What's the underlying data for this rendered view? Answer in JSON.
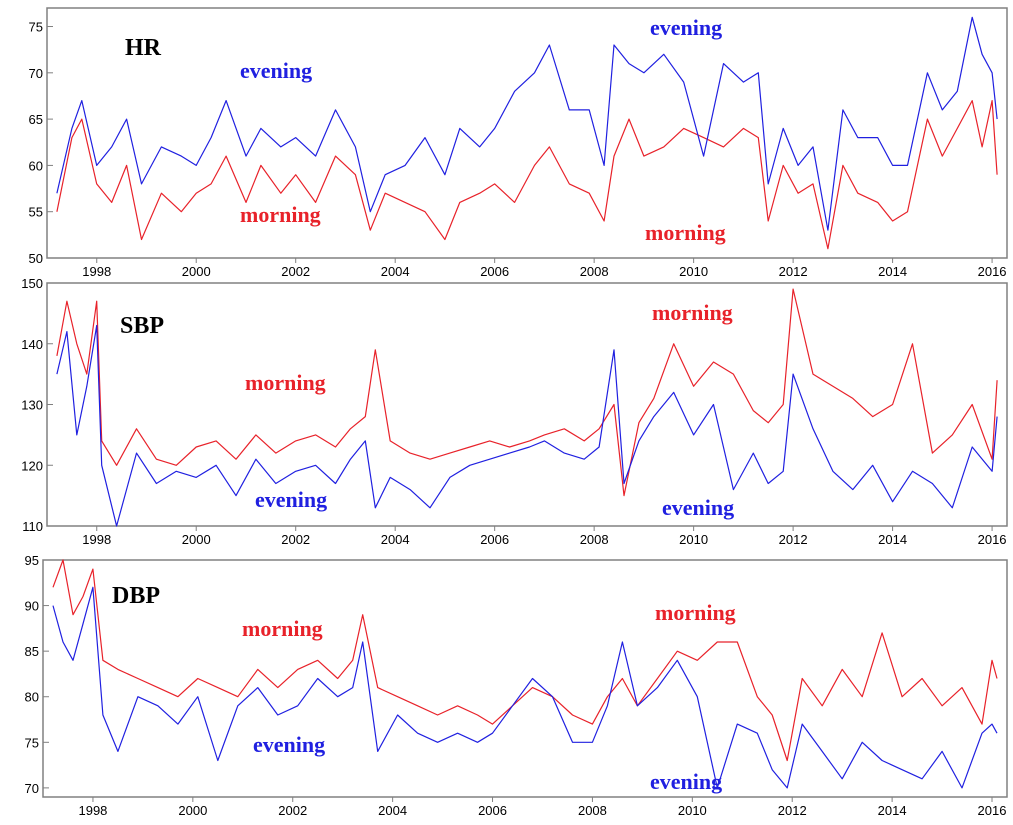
{
  "chart_data": [
    {
      "type": "line",
      "title": "HR",
      "xlabel": "",
      "ylabel": "",
      "xlim": [
        1997.0,
        2016.3
      ],
      "ylim": [
        50,
        77
      ],
      "yticks": [
        50,
        55,
        60,
        65,
        70,
        75
      ],
      "xticks": [
        "1998",
        "2000",
        "2002",
        "2004",
        "2006",
        "2008",
        "2010",
        "2012",
        "2014",
        "2016"
      ],
      "grid": false,
      "colors": {
        "morning": "#e8222a",
        "evening": "#2020e0"
      },
      "series": [
        {
          "name": "morning",
          "x": [
            1997.2,
            1997.5,
            1997.7,
            1998.0,
            1998.3,
            1998.6,
            1998.9,
            1999.3,
            1999.7,
            2000.0,
            2000.3,
            2000.6,
            2001.0,
            2001.3,
            2001.7,
            2002.0,
            2002.4,
            2002.8,
            2003.2,
            2003.5,
            2003.8,
            2004.2,
            2004.6,
            2005.0,
            2005.3,
            2005.7,
            2006.0,
            2006.4,
            2006.8,
            2007.1,
            2007.5,
            2007.9,
            2008.2,
            2008.4,
            2008.7,
            2009.0,
            2009.4,
            2009.8,
            2010.2,
            2010.6,
            2011.0,
            2011.3,
            2011.5,
            2011.8,
            2012.1,
            2012.4,
            2012.7,
            2013.0,
            2013.3,
            2013.7,
            2014.0,
            2014.3,
            2014.7,
            2015.0,
            2015.3,
            2015.6,
            2015.8,
            2016.0,
            2016.1
          ],
          "y": [
            55,
            63,
            65,
            58,
            56,
            60,
            52,
            57,
            55,
            57,
            58,
            61,
            56,
            60,
            57,
            59,
            56,
            61,
            59,
            53,
            57,
            56,
            55,
            52,
            56,
            57,
            58,
            56,
            60,
            62,
            58,
            57,
            54,
            61,
            65,
            61,
            62,
            64,
            63,
            62,
            64,
            63,
            54,
            60,
            57,
            58,
            51,
            60,
            57,
            56,
            54,
            55,
            65,
            61,
            64,
            67,
            62,
            67,
            59
          ]
        },
        {
          "name": "evening",
          "x": [
            1997.2,
            1997.5,
            1997.7,
            1998.0,
            1998.3,
            1998.6,
            1998.9,
            1999.3,
            1999.7,
            2000.0,
            2000.3,
            2000.6,
            2001.0,
            2001.3,
            2001.7,
            2002.0,
            2002.4,
            2002.8,
            2003.2,
            2003.5,
            2003.8,
            2004.2,
            2004.6,
            2005.0,
            2005.3,
            2005.7,
            2006.0,
            2006.4,
            2006.8,
            2007.1,
            2007.5,
            2007.9,
            2008.2,
            2008.4,
            2008.7,
            2009.0,
            2009.4,
            2009.8,
            2010.2,
            2010.6,
            2011.0,
            2011.3,
            2011.5,
            2011.8,
            2012.1,
            2012.4,
            2012.7,
            2013.0,
            2013.3,
            2013.7,
            2014.0,
            2014.3,
            2014.7,
            2015.0,
            2015.3,
            2015.6,
            2015.8,
            2016.0,
            2016.1
          ],
          "y": [
            57,
            64,
            67,
            60,
            62,
            65,
            58,
            62,
            61,
            60,
            63,
            67,
            61,
            64,
            62,
            63,
            61,
            66,
            62,
            55,
            59,
            60,
            63,
            59,
            64,
            62,
            64,
            68,
            70,
            73,
            66,
            66,
            60,
            73,
            71,
            70,
            72,
            69,
            61,
            71,
            69,
            70,
            58,
            64,
            60,
            62,
            53,
            66,
            63,
            63,
            60,
            60,
            70,
            66,
            68,
            76,
            72,
            70,
            65
          ]
        }
      ],
      "annotations": [
        "evening",
        "morning",
        "evening",
        "morning"
      ]
    },
    {
      "type": "line",
      "title": "SBP",
      "xlabel": "",
      "ylabel": "",
      "xlim": [
        1997.0,
        2016.3
      ],
      "ylim": [
        110,
        150
      ],
      "yticks": [
        110,
        120,
        130,
        140,
        150
      ],
      "xticks": [
        "1998",
        "2000",
        "2002",
        "2004",
        "2006",
        "2008",
        "2010",
        "2012",
        "2014",
        "2016"
      ],
      "grid": false,
      "colors": {
        "morning": "#e8222a",
        "evening": "#2020e0"
      },
      "series": [
        {
          "name": "morning",
          "x": [
            1997.2,
            1997.4,
            1997.6,
            1997.8,
            1998.0,
            1998.1,
            1998.4,
            1998.8,
            1999.2,
            1999.6,
            2000.0,
            2000.4,
            2000.8,
            2001.2,
            2001.6,
            2002.0,
            2002.4,
            2002.8,
            2003.1,
            2003.4,
            2003.6,
            2003.9,
            2004.3,
            2004.7,
            2005.1,
            2005.5,
            2005.9,
            2006.3,
            2006.7,
            2007.0,
            2007.4,
            2007.8,
            2008.1,
            2008.4,
            2008.6,
            2008.9,
            2009.2,
            2009.6,
            2010.0,
            2010.4,
            2010.8,
            2011.2,
            2011.5,
            2011.8,
            2012.0,
            2012.4,
            2012.8,
            2013.2,
            2013.6,
            2014.0,
            2014.4,
            2014.8,
            2015.2,
            2015.6,
            2016.0,
            2016.1
          ],
          "y": [
            138,
            147,
            140,
            135,
            147,
            124,
            120,
            126,
            121,
            120,
            123,
            124,
            121,
            125,
            122,
            124,
            125,
            123,
            126,
            128,
            139,
            124,
            122,
            121,
            122,
            123,
            124,
            123,
            124,
            125,
            126,
            124,
            126,
            130,
            115,
            127,
            131,
            140,
            133,
            137,
            135,
            129,
            127,
            130,
            149,
            135,
            133,
            131,
            128,
            130,
            140,
            122,
            125,
            130,
            121,
            134
          ]
        },
        {
          "name": "evening",
          "x": [
            1997.2,
            1997.4,
            1997.6,
            1997.8,
            1998.0,
            1998.1,
            1998.4,
            1998.8,
            1999.2,
            1999.6,
            2000.0,
            2000.4,
            2000.8,
            2001.2,
            2001.6,
            2002.0,
            2002.4,
            2002.8,
            2003.1,
            2003.4,
            2003.6,
            2003.9,
            2004.3,
            2004.7,
            2005.1,
            2005.5,
            2005.9,
            2006.3,
            2006.7,
            2007.0,
            2007.4,
            2007.8,
            2008.1,
            2008.4,
            2008.6,
            2008.9,
            2009.2,
            2009.6,
            2010.0,
            2010.4,
            2010.8,
            2011.2,
            2011.5,
            2011.8,
            2012.0,
            2012.4,
            2012.8,
            2013.2,
            2013.6,
            2014.0,
            2014.4,
            2014.8,
            2015.2,
            2015.6,
            2016.0,
            2016.1
          ],
          "y": [
            135,
            142,
            125,
            133,
            143,
            120,
            110,
            122,
            117,
            119,
            118,
            120,
            115,
            121,
            117,
            119,
            120,
            117,
            121,
            124,
            113,
            118,
            116,
            113,
            118,
            120,
            121,
            122,
            123,
            124,
            122,
            121,
            123,
            139,
            117,
            124,
            128,
            132,
            125,
            130,
            116,
            122,
            117,
            119,
            135,
            126,
            119,
            116,
            120,
            114,
            119,
            117,
            113,
            123,
            119,
            128
          ]
        }
      ],
      "annotations": [
        "morning",
        "evening",
        "morning",
        "evening"
      ]
    },
    {
      "type": "line",
      "title": "DBP",
      "xlabel": "",
      "ylabel": "",
      "xlim": [
        1997.0,
        2016.3
      ],
      "ylim": [
        69,
        95
      ],
      "yticks": [
        70,
        75,
        80,
        85,
        90,
        95
      ],
      "xticks": [
        "1998",
        "2000",
        "2002",
        "2004",
        "2006",
        "2008",
        "2010",
        "2012",
        "2014",
        "2016"
      ],
      "grid": false,
      "colors": {
        "morning": "#e8222a",
        "evening": "#2020e0"
      },
      "series": [
        {
          "name": "morning",
          "x": [
            1997.2,
            1997.4,
            1997.6,
            1997.8,
            1998.0,
            1998.2,
            1998.5,
            1998.9,
            1999.3,
            1999.7,
            2000.1,
            2000.5,
            2000.9,
            2001.3,
            2001.7,
            2002.1,
            2002.5,
            2002.9,
            2003.2,
            2003.4,
            2003.7,
            2004.1,
            2004.5,
            2004.9,
            2005.3,
            2005.7,
            2006.0,
            2006.4,
            2006.8,
            2007.2,
            2007.6,
            2008.0,
            2008.3,
            2008.6,
            2008.9,
            2009.3,
            2009.7,
            2010.1,
            2010.5,
            2010.9,
            2011.3,
            2011.6,
            2011.9,
            2012.2,
            2012.6,
            2013.0,
            2013.4,
            2013.8,
            2014.2,
            2014.6,
            2015.0,
            2015.4,
            2015.8,
            2016.0,
            2016.1
          ],
          "y": [
            92,
            95,
            89,
            91,
            94,
            84,
            83,
            82,
            81,
            80,
            82,
            81,
            80,
            83,
            81,
            83,
            84,
            82,
            84,
            89,
            81,
            80,
            79,
            78,
            79,
            78,
            77,
            79,
            81,
            80,
            78,
            77,
            80,
            82,
            79,
            82,
            85,
            84,
            86,
            86,
            80,
            78,
            73,
            82,
            79,
            83,
            80,
            87,
            80,
            82,
            79,
            81,
            77,
            84,
            82
          ]
        },
        {
          "name": "evening",
          "x": [
            1997.2,
            1997.4,
            1997.6,
            1997.8,
            1998.0,
            1998.2,
            1998.5,
            1998.9,
            1999.3,
            1999.7,
            2000.1,
            2000.5,
            2000.9,
            2001.3,
            2001.7,
            2002.1,
            2002.5,
            2002.9,
            2003.2,
            2003.4,
            2003.7,
            2004.1,
            2004.5,
            2004.9,
            2005.3,
            2005.7,
            2006.0,
            2006.4,
            2006.8,
            2007.2,
            2007.6,
            2008.0,
            2008.3,
            2008.6,
            2008.9,
            2009.3,
            2009.7,
            2010.1,
            2010.5,
            2010.9,
            2011.3,
            2011.6,
            2011.9,
            2012.2,
            2012.6,
            2013.0,
            2013.4,
            2013.8,
            2014.2,
            2014.6,
            2015.0,
            2015.4,
            2015.8,
            2016.0,
            2016.1
          ],
          "y": [
            90,
            86,
            84,
            88,
            92,
            78,
            74,
            80,
            79,
            77,
            80,
            73,
            79,
            81,
            78,
            79,
            82,
            80,
            81,
            86,
            74,
            78,
            76,
            75,
            76,
            75,
            76,
            79,
            82,
            80,
            75,
            75,
            79,
            86,
            79,
            81,
            84,
            80,
            70,
            77,
            76,
            72,
            70,
            77,
            74,
            71,
            75,
            73,
            72,
            71,
            74,
            70,
            76,
            77,
            76
          ]
        }
      ],
      "annotations": [
        "morning",
        "evening",
        "morning",
        "evening"
      ]
    }
  ]
}
